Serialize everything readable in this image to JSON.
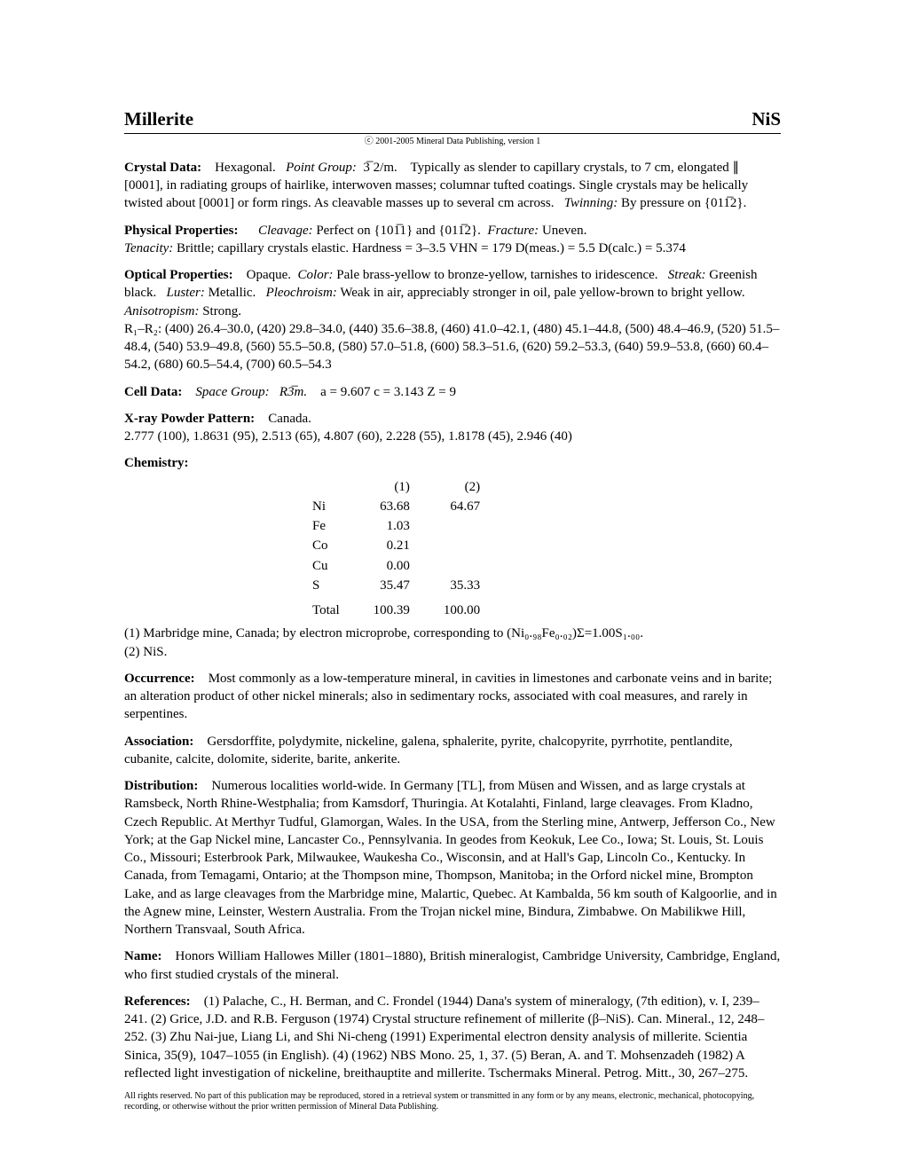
{
  "header": {
    "title": "Millerite",
    "formula": "NiS"
  },
  "copyright": "ⓒ 2001-2005 Mineral Data Publishing, version 1",
  "crystal_data": {
    "label": "Crystal Data:",
    "text1": "Hexagonal.",
    "point_group_label": "Point Group:",
    "point_group": "3̅ 2/m.",
    "text2": "Typically as slender to capillary crystals, to 7 cm, elongated ∥ [0001], in radiating groups of hairlike, interwoven masses; columnar tufted coatings. Single crystals may be helically twisted about [0001] or form rings. As cleavable masses up to several cm across.",
    "twinning_label": "Twinning:",
    "twinning": "By pressure on {011̅2}."
  },
  "physical_properties": {
    "label": "Physical Properties:",
    "cleavage_label": "Cleavage:",
    "cleavage": "Perfect on {101̅1} and {011̅2}.",
    "fracture_label": "Fracture:",
    "fracture": "Uneven.",
    "tenacity_label": "Tenacity:",
    "tenacity": "Brittle; capillary crystals elastic.    Hardness = 3–3.5    VHN = 179    D(meas.) = 5.5 D(calc.) = 5.374"
  },
  "optical_properties": {
    "label": "Optical Properties:",
    "text1": "Opaque.",
    "color_label": "Color:",
    "color": "Pale brass-yellow to bronze-yellow, tarnishes to iridescence.",
    "streak_label": "Streak:",
    "streak": "Greenish black.",
    "luster_label": "Luster:",
    "luster": "Metallic.",
    "pleochroism_label": "Pleochroism:",
    "pleochroism": "Weak in air, appreciably stronger in oil, pale yellow-brown to bright yellow.",
    "anisotropism_label": "Anisotropism:",
    "anisotropism": "Strong.",
    "r_label": "R₁–R₂:",
    "r_text": "(400) 26.4–30.0, (420) 29.8–34.0, (440) 35.6–38.8, (460) 41.0–42.1, (480) 45.1–44.8, (500) 48.4–46.9, (520) 51.5–48.4, (540) 53.9–49.8, (560) 55.5–50.8, (580) 57.0–51.8, (600) 58.3–51.6, (620) 59.2–53.3, (640) 59.9–53.8, (660) 60.4–54.2, (680) 60.5–54.4, (700) 60.5–54.3"
  },
  "cell_data": {
    "label": "Cell Data:",
    "space_group_label": "Space Group:",
    "space_group": "R3̅m.",
    "values": "a = 9.607     c = 3.143     Z = 9"
  },
  "xray": {
    "label": "X-ray Powder Pattern:",
    "location": "Canada.",
    "pattern": "2.777 (100), 1.8631 (95), 2.513 (65), 4.807 (60), 2.228 (55), 1.8178 (45), 2.946 (40)"
  },
  "chemistry": {
    "label": "Chemistry:",
    "col1": "(1)",
    "col2": "(2)",
    "rows": [
      {
        "el": "Ni",
        "v1": "63.68",
        "v2": "64.67"
      },
      {
        "el": "Fe",
        "v1": "1.03",
        "v2": ""
      },
      {
        "el": "Co",
        "v1": "0.21",
        "v2": ""
      },
      {
        "el": "Cu",
        "v1": "0.00",
        "v2": ""
      },
      {
        "el": "S",
        "v1": "35.47",
        "v2": "35.33"
      }
    ],
    "total_label": "Total",
    "total1": "100.39",
    "total2": "100.00",
    "note1": "(1)  Marbridge mine, Canada; by electron microprobe, corresponding to (Ni₀.₉₈Fe₀.₀₂)Σ=1.00S₁.₀₀.",
    "note2": "(2)  NiS."
  },
  "occurrence": {
    "label": "Occurrence:",
    "text": "Most commonly as a low-temperature mineral, in cavities in limestones and carbonate veins and in barite; an alteration product of other nickel minerals; also in sedimentary rocks, associated with coal measures, and rarely in serpentines."
  },
  "association": {
    "label": "Association:",
    "text": "Gersdorffite, polydymite, nickeline, galena, sphalerite, pyrite, chalcopyrite, pyrrhotite, pentlandite, cubanite, calcite, dolomite, siderite, barite, ankerite."
  },
  "distribution": {
    "label": "Distribution:",
    "text": "Numerous localities world-wide. In Germany [TL], from Müsen and Wissen, and as large crystals at Ramsbeck, North Rhine-Westphalia; from Kamsdorf, Thuringia. At Kotalahti, Finland, large cleavages. From Kladno, Czech Republic. At Merthyr Tudful, Glamorgan, Wales. In the USA, from the Sterling mine, Antwerp, Jefferson Co., New York; at the Gap Nickel mine, Lancaster Co., Pennsylvania. In geodes from Keokuk, Lee Co., Iowa; St. Louis, St. Louis Co., Missouri; Esterbrook Park, Milwaukee, Waukesha Co., Wisconsin, and at Hall's Gap, Lincoln Co., Kentucky. In Canada, from Temagami, Ontario; at the Thompson mine, Thompson, Manitoba; in the Orford nickel mine, Brompton Lake, and as large cleavages from the Marbridge mine, Malartic, Quebec. At Kambalda, 56 km south of Kalgoorlie, and in the Agnew mine, Leinster, Western Australia. From the Trojan nickel mine, Bindura, Zimbabwe. On Mabilikwe Hill, Northern Transvaal, South Africa."
  },
  "name": {
    "label": "Name:",
    "text": "Honors William Hallowes Miller (1801–1880), British mineralogist, Cambridge University, Cambridge, England, who first studied crystals of the mineral."
  },
  "references": {
    "label": "References:",
    "text": "(1) Palache, C., H. Berman, and C. Frondel (1944) Dana's system of mineralogy, (7th edition), v. I, 239–241. (2) Grice, J.D. and R.B. Ferguson (1974) Crystal structure refinement of millerite (β–NiS). Can. Mineral., 12, 248–252. (3) Zhu Nai-jue, Liang Li, and Shi Ni-cheng (1991) Experimental electron density analysis of millerite. Scientia Sinica, 35(9), 1047–1055 (in English). (4) (1962) NBS Mono. 25, 1, 37. (5) Beran, A. and T. Mohsenzadeh (1982) A reflected light investigation of nickeline, breithauptite and millerite. Tschermaks Mineral. Petrog. Mitt., 30, 267–275."
  },
  "footer": "All rights reserved. No part of this publication may be reproduced, stored in a retrieval system or transmitted in any form or by any means, electronic, mechanical, photocopying, recording, or otherwise without the prior written permission of Mineral Data Publishing."
}
